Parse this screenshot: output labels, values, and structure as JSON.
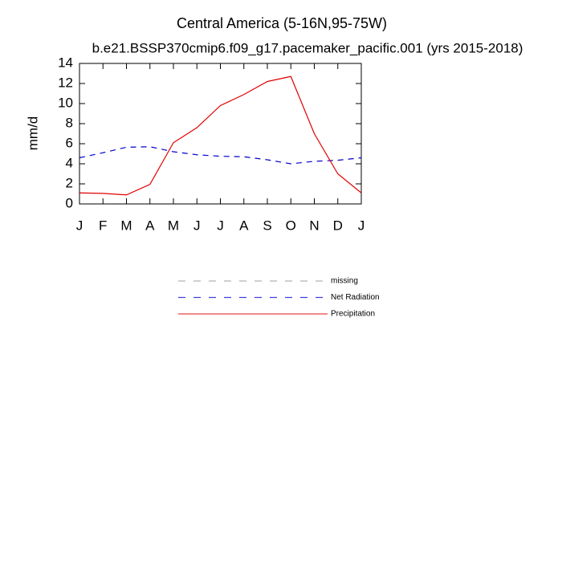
{
  "chart_data": {
    "type": "line",
    "title": "Central America (5-16N,95-75W)",
    "subtitle": "b.e21.BSSP370cmip6.f09_g17.pacemaker_pacific.001 (yrs 2015-2018)",
    "y_label": "mm/d",
    "categories": [
      "J",
      "F",
      "M",
      "A",
      "M",
      "J",
      "J",
      "A",
      "S",
      "O",
      "N",
      "D",
      "J"
    ],
    "series": [
      {
        "name": "missing",
        "color": "#999999",
        "dash": true,
        "values": [
          null,
          null,
          null,
          null,
          null,
          null,
          null,
          null,
          null,
          null,
          null,
          null,
          null
        ]
      },
      {
        "name": "Net Radiation",
        "color": "#0000cc",
        "dash": true,
        "values": [
          4.6,
          5.1,
          5.65,
          5.7,
          5.2,
          4.9,
          4.75,
          4.7,
          4.4,
          4.0,
          4.25,
          4.35,
          4.6
        ]
      },
      {
        "name": "Precipitation",
        "color": "#e00000",
        "dash": false,
        "values": [
          1.1,
          1.05,
          0.9,
          1.95,
          6.1,
          7.6,
          9.8,
          10.9,
          12.2,
          12.7,
          7.0,
          3.0,
          1.1
        ]
      }
    ],
    "ylim": [
      0,
      14
    ],
    "yticks": [
      0,
      2,
      4,
      6,
      8,
      10,
      12,
      14
    ]
  }
}
